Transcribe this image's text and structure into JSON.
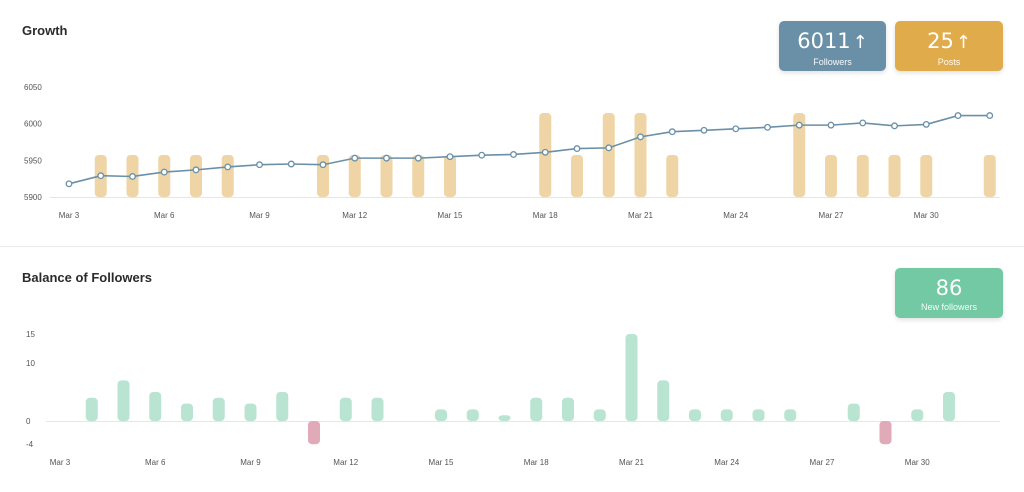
{
  "growth": {
    "title": "Growth",
    "cards": [
      {
        "value": "6011",
        "arrow": "↑",
        "label": "Followers",
        "color": "#6a90a8"
      },
      {
        "value": "25",
        "arrow": "↑",
        "label": "Posts",
        "color": "#e0ab4a"
      }
    ]
  },
  "balance": {
    "title": "Balance of Followers",
    "card": {
      "value": "86",
      "label": "New followers",
      "color": "#72c9a4"
    }
  },
  "colors": {
    "followers_line": "#6a90a8",
    "posts_bar": "#efd5a6",
    "positive_bar": "#b8e4d1",
    "negative_bar": "#e0aab8"
  },
  "chart_data": [
    {
      "type": "line",
      "title": "Growth",
      "x": [
        "Mar 3",
        "Mar 4",
        "Mar 5",
        "Mar 6",
        "Mar 7",
        "Mar 8",
        "Mar 9",
        "Mar 10",
        "Mar 11",
        "Mar 12",
        "Mar 13",
        "Mar 14",
        "Mar 15",
        "Mar 16",
        "Mar 17",
        "Mar 18",
        "Mar 19",
        "Mar 20",
        "Mar 21",
        "Mar 22",
        "Mar 23",
        "Mar 24",
        "Mar 25",
        "Mar 26",
        "Mar 27",
        "Mar 28",
        "Mar 29",
        "Mar 30",
        "Mar 31",
        "Apr 1"
      ],
      "x_tick_labels": [
        "Mar 3",
        "Mar 6",
        "Mar 9",
        "Mar 12",
        "Mar 15",
        "Mar 18",
        "Mar 21",
        "Mar 24",
        "Mar 27",
        "Mar 30"
      ],
      "y_ticks": [
        5900,
        5950,
        6000,
        6050
      ],
      "ylim": [
        5900,
        6050
      ],
      "series": [
        {
          "kind": "line",
          "values": [
            5918,
            5929,
            5928,
            5934,
            5937,
            5941,
            5944,
            5945,
            5944,
            5953,
            5953,
            5953,
            5955,
            5957,
            5958,
            5961,
            5966,
            5967,
            5982,
            5989,
            5991,
            5993,
            5995,
            5998,
            5998,
            6001,
            5997,
            5999,
            6011,
            6011
          ]
        },
        {
          "kind": "bar",
          "values": [
            0,
            1,
            1,
            1,
            1,
            1,
            0,
            0,
            1,
            1,
            1,
            1,
            1,
            0,
            0,
            2,
            1,
            2,
            2,
            1,
            0,
            0,
            0,
            2,
            1,
            1,
            1,
            1,
            0,
            1
          ]
        }
      ],
      "bar_value_range": [
        0,
        2
      ],
      "grid": false,
      "legend": "none"
    },
    {
      "type": "bar",
      "title": "Balance of Followers",
      "categories": [
        "Mar 3",
        "Mar 4",
        "Mar 5",
        "Mar 6",
        "Mar 7",
        "Mar 8",
        "Mar 9",
        "Mar 10",
        "Mar 11",
        "Mar 12",
        "Mar 13",
        "Mar 14",
        "Mar 15",
        "Mar 16",
        "Mar 17",
        "Mar 18",
        "Mar 19",
        "Mar 20",
        "Mar 21",
        "Mar 22",
        "Mar 23",
        "Mar 24",
        "Mar 25",
        "Mar 26",
        "Mar 27",
        "Mar 28",
        "Mar 29",
        "Mar 30",
        "Mar 31",
        "Apr 1"
      ],
      "x_tick_labels": [
        "Mar 3",
        "Mar 6",
        "Mar 9",
        "Mar 12",
        "Mar 15",
        "Mar 18",
        "Mar 21",
        "Mar 24",
        "Mar 27",
        "Mar 30"
      ],
      "values": [
        0,
        4,
        7,
        5,
        3,
        4,
        3,
        5,
        -4,
        4,
        4,
        0,
        2,
        2,
        1,
        4,
        4,
        2,
        15,
        7,
        2,
        2,
        2,
        2,
        0,
        3,
        -4,
        2,
        5,
        0
      ],
      "y_ticks": [
        -4,
        0,
        10,
        15
      ],
      "ylim": [
        -4,
        15
      ],
      "grid": false,
      "legend": "none"
    }
  ]
}
